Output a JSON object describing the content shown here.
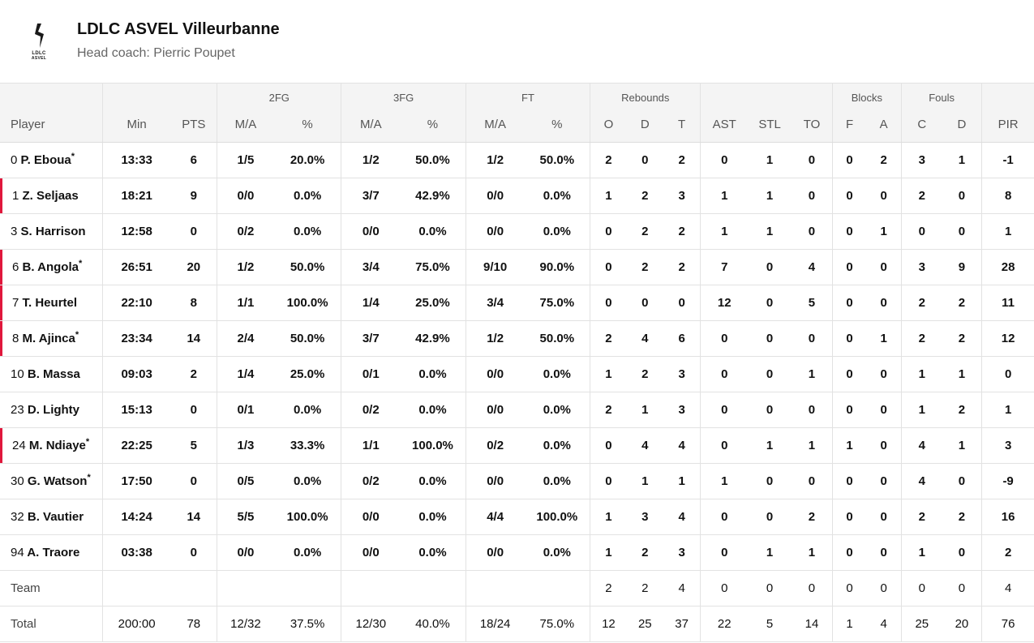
{
  "team": {
    "name": "LDLC ASVEL Villeurbanne",
    "coach": "Head coach: Pierric Poupet",
    "logo_line1": "LDLC",
    "logo_line2": "ASVEL",
    "logo_color": "#1a1a1a",
    "accent_color": "#e0173c"
  },
  "columns": {
    "groups": {
      "fg2": "2FG",
      "fg3": "3FG",
      "ft": "FT",
      "rebounds": "Rebounds",
      "blocks": "Blocks",
      "fouls": "Fouls"
    },
    "player": "Player",
    "min": "Min",
    "pts": "PTS",
    "fg2_ma": "M/A",
    "fg2_pct": "%",
    "fg3_ma": "M/A",
    "fg3_pct": "%",
    "ft_ma": "M/A",
    "ft_pct": "%",
    "reb_o": "O",
    "reb_d": "D",
    "reb_t": "T",
    "ast": "AST",
    "stl": "STL",
    "to": "TO",
    "blk_f": "F",
    "blk_a": "A",
    "fouls_c": "C",
    "fouls_d": "D",
    "pir": "PIR"
  },
  "players": [
    {
      "no": "0",
      "name": "P. Eboua",
      "star": "*",
      "marked": false,
      "cells": [
        "13:33",
        "6",
        "1/5",
        "20.0%",
        "1/2",
        "50.0%",
        "1/2",
        "50.0%",
        "2",
        "0",
        "2",
        "0",
        "1",
        "0",
        "0",
        "2",
        "3",
        "1",
        "-1"
      ]
    },
    {
      "no": "1",
      "name": "Z. Seljaas",
      "star": "",
      "marked": true,
      "cells": [
        "18:21",
        "9",
        "0/0",
        "0.0%",
        "3/7",
        "42.9%",
        "0/0",
        "0.0%",
        "1",
        "2",
        "3",
        "1",
        "1",
        "0",
        "0",
        "0",
        "2",
        "0",
        "8"
      ]
    },
    {
      "no": "3",
      "name": "S. Harrison",
      "star": "",
      "marked": false,
      "cells": [
        "12:58",
        "0",
        "0/2",
        "0.0%",
        "0/0",
        "0.0%",
        "0/0",
        "0.0%",
        "0",
        "2",
        "2",
        "1",
        "1",
        "0",
        "0",
        "1",
        "0",
        "0",
        "1"
      ]
    },
    {
      "no": "6",
      "name": "B. Angola",
      "star": "*",
      "marked": true,
      "cells": [
        "26:51",
        "20",
        "1/2",
        "50.0%",
        "3/4",
        "75.0%",
        "9/10",
        "90.0%",
        "0",
        "2",
        "2",
        "7",
        "0",
        "4",
        "0",
        "0",
        "3",
        "9",
        "28"
      ]
    },
    {
      "no": "7",
      "name": "T. Heurtel",
      "star": "",
      "marked": true,
      "cells": [
        "22:10",
        "8",
        "1/1",
        "100.0%",
        "1/4",
        "25.0%",
        "3/4",
        "75.0%",
        "0",
        "0",
        "0",
        "12",
        "0",
        "5",
        "0",
        "0",
        "2",
        "2",
        "11"
      ]
    },
    {
      "no": "8",
      "name": "M. Ajinca",
      "star": "*",
      "marked": true,
      "cells": [
        "23:34",
        "14",
        "2/4",
        "50.0%",
        "3/7",
        "42.9%",
        "1/2",
        "50.0%",
        "2",
        "4",
        "6",
        "0",
        "0",
        "0",
        "0",
        "1",
        "2",
        "2",
        "12"
      ]
    },
    {
      "no": "10",
      "name": "B. Massa",
      "star": "",
      "marked": false,
      "cells": [
        "09:03",
        "2",
        "1/4",
        "25.0%",
        "0/1",
        "0.0%",
        "0/0",
        "0.0%",
        "1",
        "2",
        "3",
        "0",
        "0",
        "1",
        "0",
        "0",
        "1",
        "1",
        "0"
      ]
    },
    {
      "no": "23",
      "name": "D. Lighty",
      "star": "",
      "marked": false,
      "cells": [
        "15:13",
        "0",
        "0/1",
        "0.0%",
        "0/2",
        "0.0%",
        "0/0",
        "0.0%",
        "2",
        "1",
        "3",
        "0",
        "0",
        "0",
        "0",
        "0",
        "1",
        "2",
        "1"
      ]
    },
    {
      "no": "24",
      "name": "M. Ndiaye",
      "star": "*",
      "marked": true,
      "cells": [
        "22:25",
        "5",
        "1/3",
        "33.3%",
        "1/1",
        "100.0%",
        "0/2",
        "0.0%",
        "0",
        "4",
        "4",
        "0",
        "1",
        "1",
        "1",
        "0",
        "4",
        "1",
        "3"
      ]
    },
    {
      "no": "30",
      "name": "G. Watson",
      "star": "*",
      "marked": false,
      "cells": [
        "17:50",
        "0",
        "0/5",
        "0.0%",
        "0/2",
        "0.0%",
        "0/0",
        "0.0%",
        "0",
        "1",
        "1",
        "1",
        "0",
        "0",
        "0",
        "0",
        "4",
        "0",
        "-9"
      ]
    },
    {
      "no": "32",
      "name": "B. Vautier",
      "star": "",
      "marked": false,
      "cells": [
        "14:24",
        "14",
        "5/5",
        "100.0%",
        "0/0",
        "0.0%",
        "4/4",
        "100.0%",
        "1",
        "3",
        "4",
        "0",
        "0",
        "2",
        "0",
        "0",
        "2",
        "2",
        "16"
      ]
    },
    {
      "no": "94",
      "name": "A. Traore",
      "star": "",
      "marked": false,
      "cells": [
        "03:38",
        "0",
        "0/0",
        "0.0%",
        "0/0",
        "0.0%",
        "0/0",
        "0.0%",
        "1",
        "2",
        "3",
        "0",
        "1",
        "1",
        "0",
        "0",
        "1",
        "0",
        "2"
      ]
    }
  ],
  "team_row": {
    "label": "Team",
    "cells": [
      "",
      "",
      "",
      "",
      "",
      "",
      "",
      "",
      "2",
      "2",
      "4",
      "0",
      "0",
      "0",
      "0",
      "0",
      "0",
      "0",
      "4"
    ]
  },
  "total_row": {
    "label": "Total",
    "cells": [
      "200:00",
      "78",
      "12/32",
      "37.5%",
      "12/30",
      "40.0%",
      "18/24",
      "75.0%",
      "12",
      "25",
      "37",
      "22",
      "5",
      "14",
      "1",
      "4",
      "25",
      "20",
      "76"
    ]
  }
}
